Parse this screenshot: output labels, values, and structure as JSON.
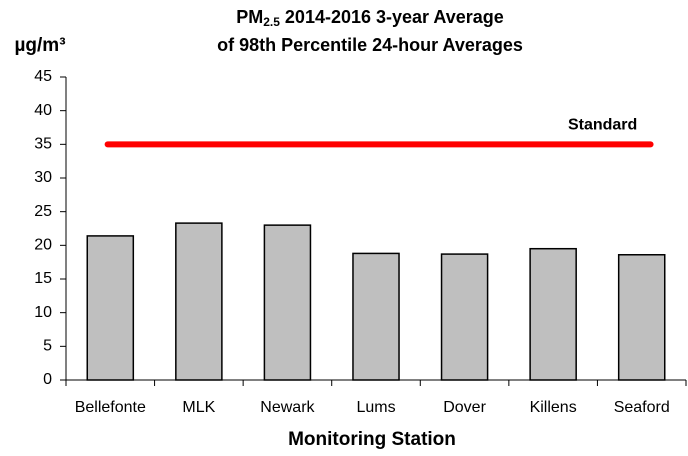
{
  "chart_data": {
    "type": "bar",
    "title_lines": [
      [
        "PM",
        "2.5",
        "2014-2016 3-year Average"
      ],
      [
        "of 98th Percentile 24-hour Averages"
      ]
    ],
    "y_label": "µg/m³",
    "x_label": "Monitoring Station",
    "categories": [
      "Bellefonte",
      "MLK",
      "Newark",
      "Lums",
      "Dover",
      "Killens",
      "Seaford"
    ],
    "values": [
      21.4,
      23.3,
      23.0,
      18.8,
      18.7,
      19.5,
      18.6
    ],
    "color": "#bfbfbf",
    "ylim": [
      0,
      45
    ],
    "yticks": [
      0,
      5,
      10,
      15,
      20,
      25,
      30,
      35,
      40,
      45
    ],
    "grid": false,
    "reference_line": {
      "value": 35,
      "label": "Standard",
      "color": "#ff0000"
    }
  }
}
